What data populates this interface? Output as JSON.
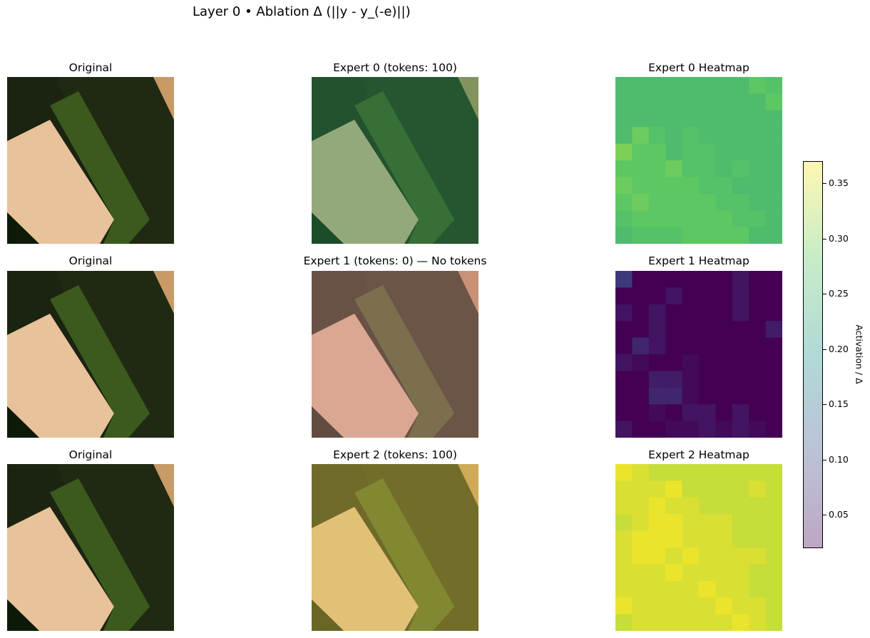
{
  "title": "Layer 0 • Ablation Δ (||y - y_(-e)||)",
  "rows": [
    {
      "original_title": "Original",
      "expert_title": "Expert 0 (tokens: 100)",
      "heatmap_title": "Expert 0 Heatmap",
      "tint": "#2e8b57"
    },
    {
      "original_title": "Original",
      "expert_title": "Expert 1 (tokens: 0) — No tokens",
      "heatmap_title": "Expert 1 Heatmap",
      "tint": "#c98a8a"
    },
    {
      "original_title": "Original",
      "expert_title": "Expert 2 (tokens: 100)",
      "heatmap_title": "Expert 2 Heatmap",
      "tint": "#d8c24a"
    }
  ],
  "colorbar": {
    "label": "Activation / Δ",
    "ticks": [
      "0.05",
      "0.10",
      "0.15",
      "0.20",
      "0.25",
      "0.30",
      "0.35"
    ]
  },
  "chart_data": {
    "type": "heatmap",
    "title": "Layer 0 • Ablation Δ (||y - y_(-e)||)",
    "colorbar_label": "Activation / Δ",
    "vmin": 0.02,
    "vmax": 0.37,
    "colormap": "viridis",
    "heatmaps": [
      {
        "title": "Expert 0 Heatmap",
        "values": [
          [
            0.26,
            0.26,
            0.26,
            0.26,
            0.26,
            0.26,
            0.26,
            0.26,
            0.28,
            0.27
          ],
          [
            0.26,
            0.26,
            0.26,
            0.26,
            0.26,
            0.26,
            0.26,
            0.26,
            0.26,
            0.28
          ],
          [
            0.26,
            0.26,
            0.26,
            0.26,
            0.26,
            0.26,
            0.26,
            0.26,
            0.26,
            0.26
          ],
          [
            0.26,
            0.29,
            0.27,
            0.26,
            0.27,
            0.26,
            0.26,
            0.26,
            0.26,
            0.26
          ],
          [
            0.3,
            0.28,
            0.28,
            0.26,
            0.27,
            0.27,
            0.26,
            0.26,
            0.26,
            0.26
          ],
          [
            0.28,
            0.28,
            0.28,
            0.29,
            0.27,
            0.27,
            0.26,
            0.27,
            0.26,
            0.26
          ],
          [
            0.29,
            0.28,
            0.28,
            0.28,
            0.28,
            0.27,
            0.27,
            0.26,
            0.26,
            0.26
          ],
          [
            0.28,
            0.29,
            0.28,
            0.28,
            0.28,
            0.28,
            0.27,
            0.27,
            0.26,
            0.26
          ],
          [
            0.27,
            0.28,
            0.28,
            0.28,
            0.28,
            0.28,
            0.28,
            0.27,
            0.27,
            0.26
          ],
          [
            0.26,
            0.27,
            0.27,
            0.27,
            0.28,
            0.28,
            0.28,
            0.28,
            0.26,
            0.26
          ]
        ]
      },
      {
        "title": "Expert 1 Heatmap",
        "values": [
          [
            0.08,
            0.02,
            0.02,
            0.02,
            0.02,
            0.02,
            0.02,
            0.04,
            0.02,
            0.02
          ],
          [
            0.02,
            0.02,
            0.02,
            0.04,
            0.02,
            0.02,
            0.02,
            0.04,
            0.02,
            0.02
          ],
          [
            0.04,
            0.02,
            0.04,
            0.02,
            0.02,
            0.02,
            0.02,
            0.04,
            0.02,
            0.02
          ],
          [
            0.02,
            0.02,
            0.04,
            0.02,
            0.02,
            0.02,
            0.02,
            0.02,
            0.02,
            0.05
          ],
          [
            0.02,
            0.06,
            0.04,
            0.02,
            0.02,
            0.02,
            0.02,
            0.02,
            0.02,
            0.02
          ],
          [
            0.04,
            0.03,
            0.02,
            0.02,
            0.03,
            0.02,
            0.02,
            0.02,
            0.02,
            0.02
          ],
          [
            0.02,
            0.02,
            0.05,
            0.05,
            0.03,
            0.02,
            0.02,
            0.02,
            0.02,
            0.02
          ],
          [
            0.02,
            0.02,
            0.06,
            0.06,
            0.03,
            0.02,
            0.02,
            0.02,
            0.02,
            0.02
          ],
          [
            0.02,
            0.02,
            0.03,
            0.02,
            0.04,
            0.04,
            0.02,
            0.04,
            0.02,
            0.02
          ],
          [
            0.04,
            0.02,
            0.02,
            0.03,
            0.03,
            0.04,
            0.03,
            0.04,
            0.03,
            0.02
          ]
        ]
      },
      {
        "title": "Expert 2 Heatmap",
        "values": [
          [
            0.36,
            0.35,
            0.34,
            0.34,
            0.34,
            0.34,
            0.34,
            0.34,
            0.34,
            0.34
          ],
          [
            0.35,
            0.35,
            0.35,
            0.36,
            0.34,
            0.34,
            0.34,
            0.34,
            0.35,
            0.34
          ],
          [
            0.35,
            0.35,
            0.36,
            0.35,
            0.35,
            0.34,
            0.34,
            0.34,
            0.34,
            0.34
          ],
          [
            0.34,
            0.35,
            0.36,
            0.36,
            0.35,
            0.35,
            0.35,
            0.34,
            0.34,
            0.34
          ],
          [
            0.35,
            0.36,
            0.36,
            0.36,
            0.35,
            0.35,
            0.35,
            0.34,
            0.34,
            0.34
          ],
          [
            0.35,
            0.36,
            0.36,
            0.35,
            0.36,
            0.35,
            0.35,
            0.35,
            0.35,
            0.34
          ],
          [
            0.35,
            0.35,
            0.35,
            0.36,
            0.35,
            0.35,
            0.35,
            0.35,
            0.34,
            0.34
          ],
          [
            0.35,
            0.35,
            0.35,
            0.35,
            0.35,
            0.36,
            0.35,
            0.35,
            0.34,
            0.34
          ],
          [
            0.36,
            0.35,
            0.35,
            0.35,
            0.35,
            0.35,
            0.36,
            0.35,
            0.35,
            0.34
          ],
          [
            0.34,
            0.35,
            0.35,
            0.35,
            0.35,
            0.35,
            0.35,
            0.36,
            0.35,
            0.34
          ]
        ]
      }
    ]
  }
}
